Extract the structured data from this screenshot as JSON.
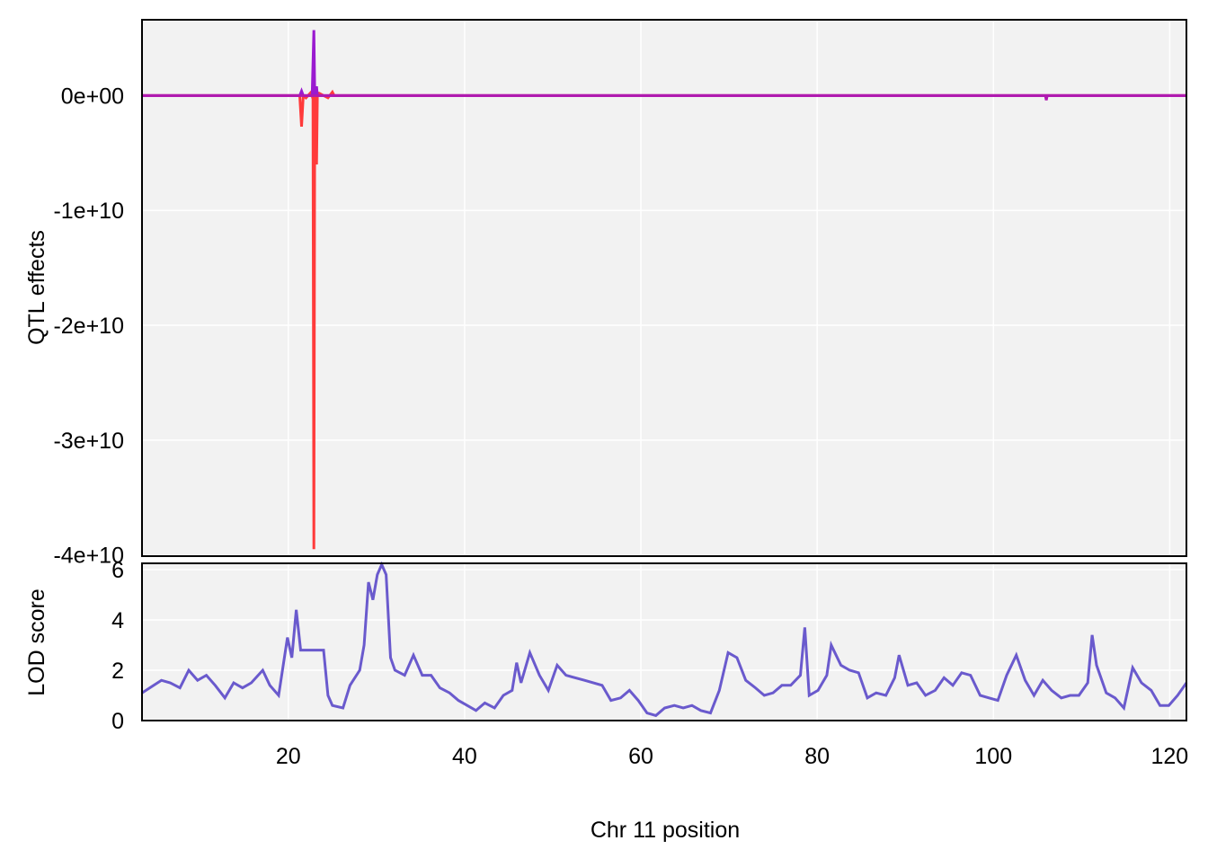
{
  "chart_data": [
    {
      "type": "line",
      "ylabel": "QTL effects",
      "ylim": [
        -40100000000.0,
        6600000000.0
      ],
      "yticks": [
        {
          "value": 0,
          "label": "0e+00"
        },
        {
          "value": -10000000000.0,
          "label": "-1e+10"
        },
        {
          "value": -20000000000.0,
          "label": "-2e+10"
        },
        {
          "value": -30000000000.0,
          "label": "-3e+10"
        },
        {
          "value": -40000000000.0,
          "label": "-4e+10"
        }
      ],
      "grid": true,
      "series": [
        {
          "color": "#ff3b3b",
          "x": [
            3.4,
            21.3,
            21.5,
            21.7,
            22.0,
            22.6,
            22.8,
            22.9,
            23.0,
            23.2,
            23.3,
            23.5,
            24.5,
            25.0,
            25.2,
            121.9
          ],
          "values": [
            0,
            0,
            -2700000000.0,
            0,
            -200000000.0,
            300000000.0,
            -300000000.0,
            -39500000000.0,
            0,
            -6000000000.0,
            0,
            200000000.0,
            -200000000.0,
            300000000.0,
            0,
            0
          ]
        },
        {
          "color": "#9a1ad0",
          "x": [
            3.4,
            21.3,
            21.5,
            21.7,
            22.7,
            22.9,
            23.0,
            23.2,
            23.3,
            121.9
          ],
          "values": [
            0,
            0,
            400000000.0,
            0,
            0,
            5700000000.0,
            0,
            800000000.0,
            0,
            0
          ]
        },
        {
          "color": "#b01ab0",
          "x": [
            3.4,
            105.9,
            106.0,
            106.1,
            121.9
          ],
          "values": [
            0,
            0,
            -400000000.0,
            0,
            0
          ]
        }
      ]
    },
    {
      "type": "line",
      "ylabel": "LOD score",
      "xlabel": "Chr 11 position",
      "xlim": [
        3.4,
        121.9
      ],
      "xticks": [
        20,
        40,
        60,
        80,
        100,
        120
      ],
      "ylim": [
        0,
        6.25
      ],
      "yticks": [
        0,
        2,
        4,
        6
      ],
      "grid": true,
      "series": [
        {
          "color": "#6a5acd",
          "x": [
            3.4,
            5.6,
            6.6,
            7.7,
            8.7,
            9.7,
            10.7,
            11.7,
            12.8,
            13.8,
            14.8,
            15.8,
            17.1,
            17.9,
            18.9,
            19.9,
            20.4,
            20.9,
            21.4,
            24.0,
            24.5,
            25.0,
            26.2,
            27.0,
            28.1,
            28.6,
            29.1,
            29.6,
            30.1,
            30.6,
            31.1,
            31.6,
            32.1,
            33.2,
            34.2,
            35.2,
            36.2,
            37.2,
            38.3,
            39.3,
            40.3,
            41.3,
            42.3,
            43.4,
            44.4,
            45.4,
            45.9,
            46.4,
            47.4,
            48.5,
            49.5,
            50.5,
            51.5,
            53.6,
            55.6,
            56.6,
            57.7,
            58.7,
            59.7,
            60.7,
            61.7,
            62.7,
            63.8,
            64.8,
            65.8,
            66.8,
            67.9,
            68.9,
            69.9,
            70.9,
            71.9,
            73.0,
            74.0,
            75.0,
            76.0,
            77.0,
            78.1,
            78.6,
            79.1,
            80.1,
            81.1,
            81.6,
            82.7,
            83.7,
            84.7,
            85.7,
            86.7,
            87.8,
            88.8,
            89.3,
            90.3,
            91.3,
            92.3,
            93.4,
            94.4,
            95.4,
            96.4,
            97.4,
            98.5,
            99.5,
            100.5,
            101.5,
            102.6,
            103.6,
            104.6,
            105.6,
            106.6,
            107.7,
            108.7,
            109.7,
            110.7,
            111.2,
            111.7,
            112.8,
            113.8,
            114.8,
            115.8,
            116.8,
            117.9,
            118.9,
            119.9,
            120.9,
            121.9
          ],
          "values": [
            1.1,
            1.6,
            1.5,
            1.3,
            2.0,
            1.6,
            1.8,
            1.4,
            0.9,
            1.5,
            1.3,
            1.5,
            2.0,
            1.4,
            1.0,
            3.3,
            2.5,
            4.4,
            2.8,
            2.8,
            1.0,
            0.6,
            0.5,
            1.4,
            2.0,
            3.0,
            5.5,
            4.8,
            5.8,
            6.2,
            5.8,
            2.5,
            2.0,
            1.8,
            2.6,
            1.8,
            1.8,
            1.3,
            1.1,
            0.8,
            0.6,
            0.4,
            0.7,
            0.5,
            1.0,
            1.2,
            2.3,
            1.5,
            2.7,
            1.8,
            1.2,
            2.2,
            1.8,
            1.6,
            1.4,
            0.8,
            0.9,
            1.2,
            0.8,
            0.3,
            0.2,
            0.5,
            0.6,
            0.5,
            0.6,
            0.4,
            0.3,
            1.2,
            2.7,
            2.5,
            1.6,
            1.3,
            1.0,
            1.1,
            1.4,
            1.4,
            1.8,
            3.7,
            1.0,
            1.2,
            1.8,
            3.0,
            2.2,
            2.0,
            1.9,
            0.9,
            1.1,
            1.0,
            1.7,
            2.6,
            1.4,
            1.5,
            1.0,
            1.2,
            1.7,
            1.4,
            1.9,
            1.8,
            1.0,
            0.9,
            0.8,
            1.8,
            2.6,
            1.6,
            1.0,
            1.6,
            1.2,
            0.9,
            1.0,
            1.0,
            1.5,
            3.4,
            2.2,
            1.1,
            0.9,
            0.5,
            2.1,
            1.5,
            1.2,
            0.6,
            0.6,
            1.0,
            1.5
          ]
        }
      ]
    }
  ]
}
